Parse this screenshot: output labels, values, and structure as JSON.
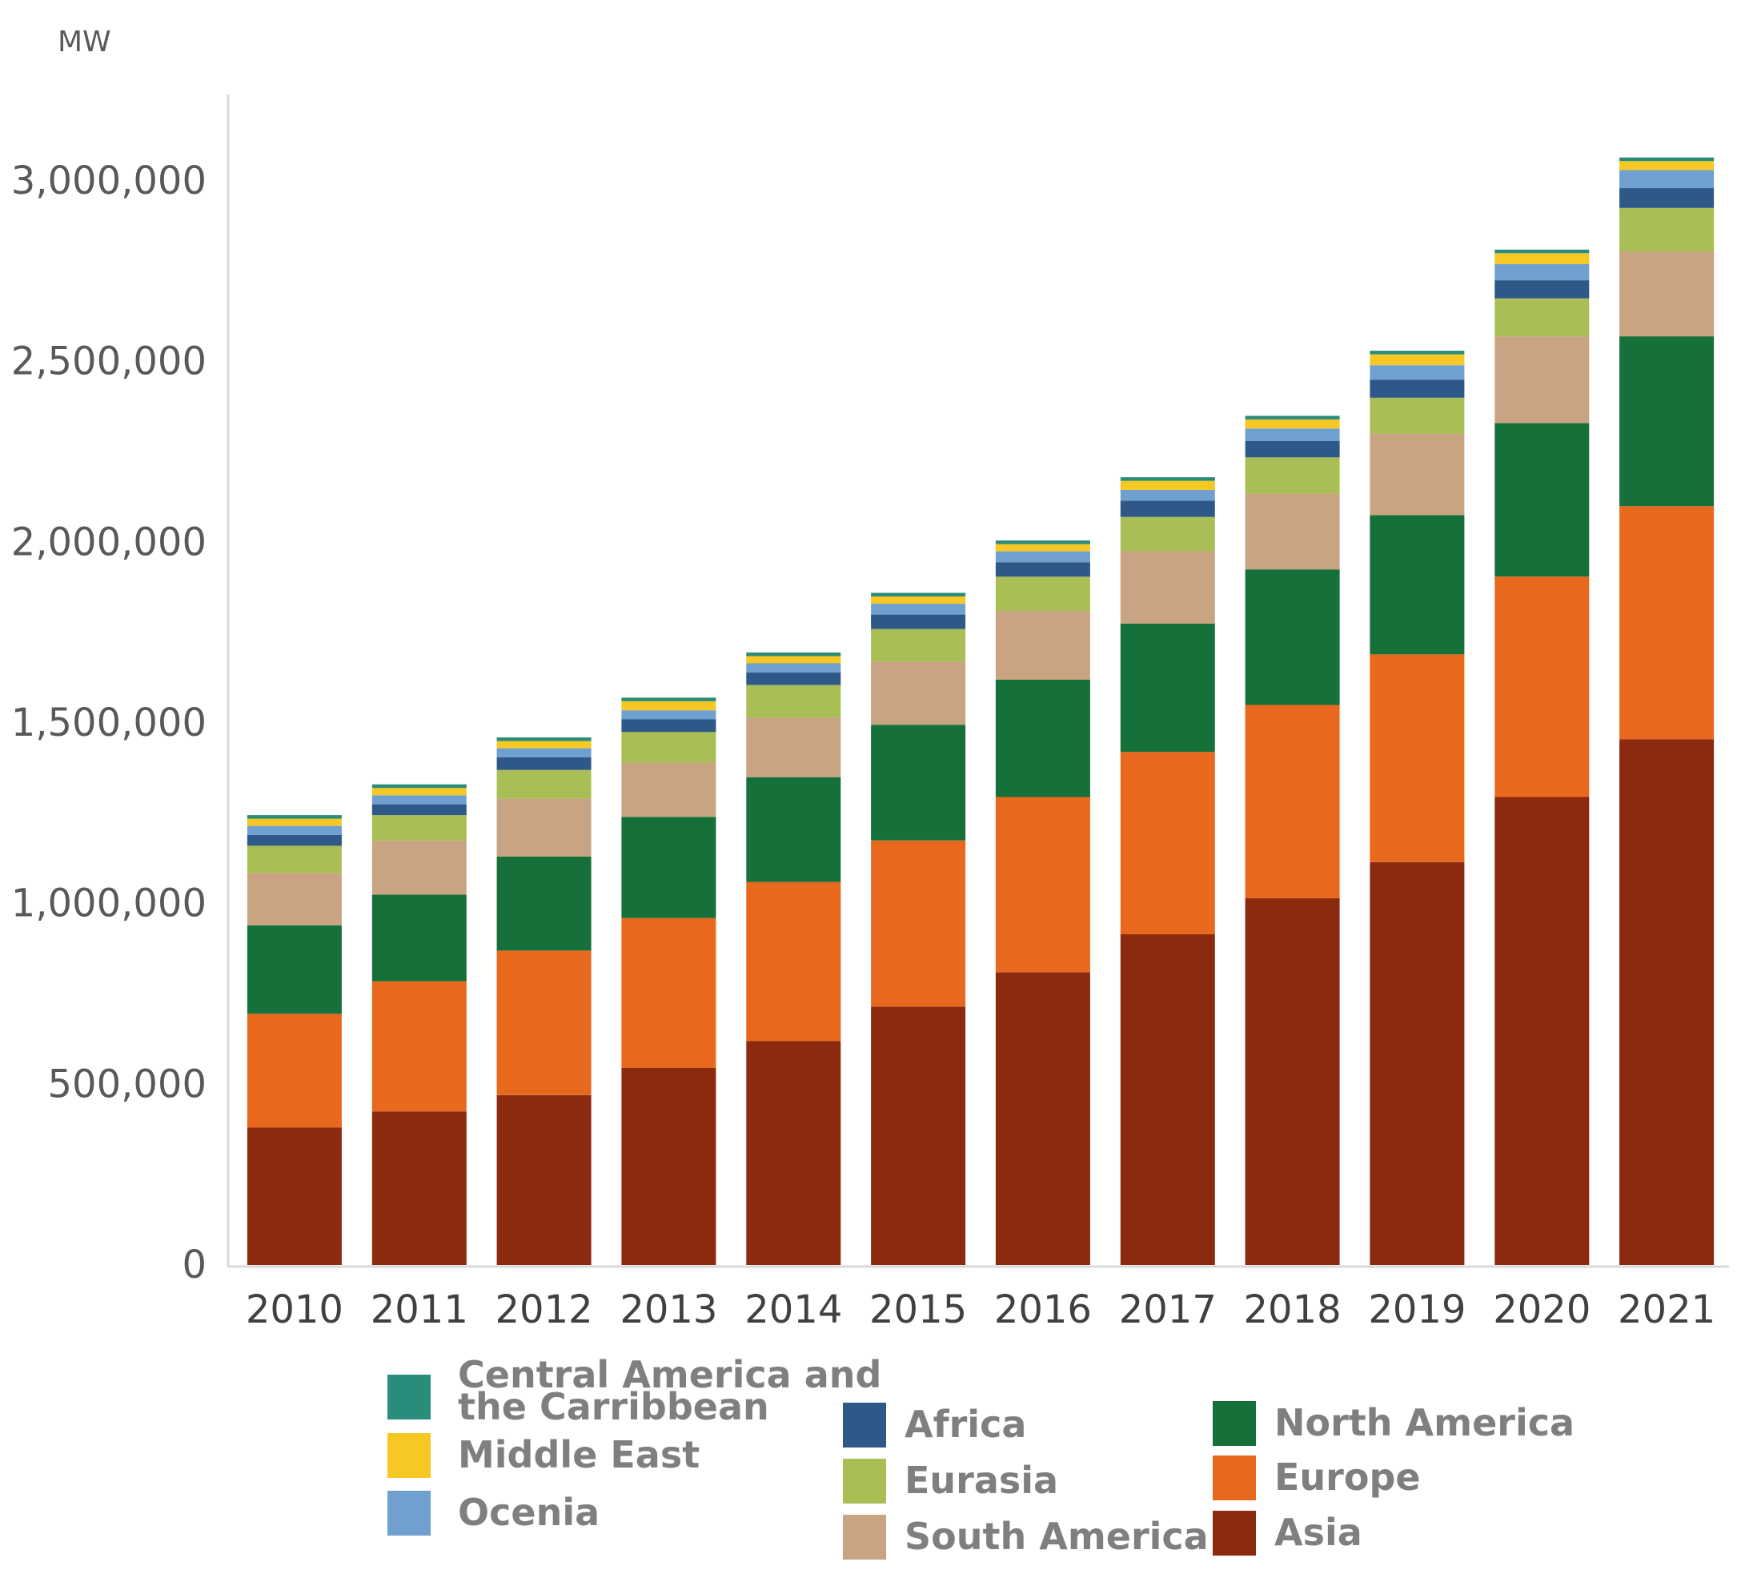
{
  "chart_data": {
    "type": "bar",
    "stacked": true,
    "ylabel": "MW",
    "ylim": [
      0,
      3200000
    ],
    "yticks": [
      0,
      500000,
      1000000,
      1500000,
      2000000,
      2500000,
      3000000
    ],
    "ytick_labels": [
      "0",
      "500,000",
      "1,000,000",
      "1,500,000",
      "2,000,000",
      "2,500,000",
      "3,000,000"
    ],
    "grid": false,
    "legend_position": "bottom",
    "categories": [
      "2010",
      "2011",
      "2012",
      "2013",
      "2014",
      "2015",
      "2016",
      "2017",
      "2018",
      "2019",
      "2020",
      "2021"
    ],
    "series": [
      {
        "name": "Asia",
        "color": "#8B2A0F",
        "values": [
          380000,
          425000,
          470000,
          545000,
          620000,
          715000,
          810000,
          915000,
          1015000,
          1115000,
          1295000,
          1455000
        ]
      },
      {
        "name": "Europe",
        "color": "#E8691E",
        "values": [
          315000,
          360000,
          400000,
          415000,
          440000,
          460000,
          485000,
          505000,
          535000,
          575000,
          610000,
          645000
        ]
      },
      {
        "name": "North America",
        "color": "#16703A",
        "values": [
          245000,
          240000,
          260000,
          280000,
          290000,
          320000,
          325000,
          355000,
          375000,
          385000,
          425000,
          470000
        ]
      },
      {
        "name": "South America",
        "color": "#C9A482",
        "values": [
          145000,
          150000,
          160000,
          150000,
          165000,
          175000,
          190000,
          200000,
          210000,
          225000,
          240000,
          235000
        ]
      },
      {
        "name": "Eurasia",
        "color": "#A9BF56",
        "values": [
          75000,
          70000,
          80000,
          85000,
          90000,
          90000,
          95000,
          95000,
          100000,
          100000,
          105000,
          120000
        ]
      },
      {
        "name": "Africa",
        "color": "#2E5887",
        "values": [
          30000,
          30000,
          35000,
          35000,
          35000,
          40000,
          40000,
          45000,
          45000,
          50000,
          50000,
          55000
        ]
      },
      {
        "name": "Ocenia",
        "color": "#6FA0D0",
        "values": [
          25000,
          25000,
          25000,
          25000,
          25000,
          30000,
          30000,
          30000,
          35000,
          40000,
          45000,
          50000
        ]
      },
      {
        "name": "Middle East",
        "color": "#F7C823",
        "values": [
          20000,
          20000,
          20000,
          25000,
          20000,
          20000,
          20000,
          25000,
          25000,
          30000,
          30000,
          25000
        ]
      },
      {
        "name": "Central America and the Carribbean",
        "color": "#2A8C7A",
        "values": [
          10000,
          10000,
          10000,
          10000,
          10000,
          10000,
          10000,
          10000,
          10000,
          10000,
          10000,
          10000
        ]
      }
    ]
  },
  "legend": {
    "col1": [
      "Central America and the Carribbean",
      "Middle East",
      "Ocenia"
    ],
    "col2": [
      "Africa",
      "Eurasia",
      "South America"
    ],
    "col3": [
      "North America",
      "Europe",
      "Asia"
    ]
  }
}
